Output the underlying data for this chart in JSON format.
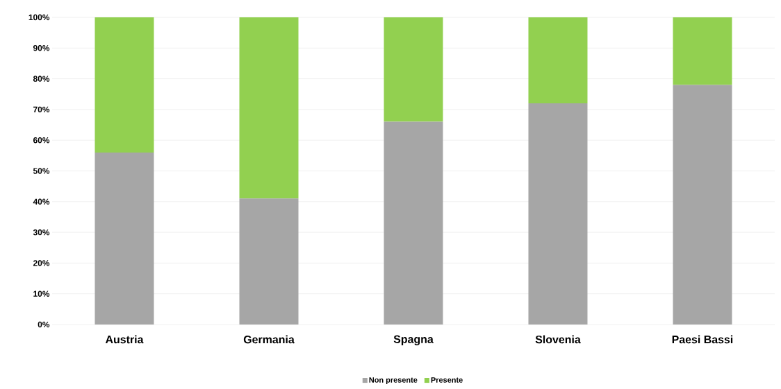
{
  "chart_data": {
    "type": "bar",
    "stacked": true,
    "categories": [
      "Austria",
      "Germania",
      "Spagna",
      "Slovenia",
      "Paesi Bassi"
    ],
    "series": [
      {
        "name": "Non presente",
        "color": "#a6a6a6",
        "values": [
          56,
          41,
          66,
          72,
          78
        ]
      },
      {
        "name": "Presente",
        "color": "#92d050",
        "values": [
          44,
          59,
          34,
          28,
          22
        ]
      }
    ],
    "ylim": [
      0,
      100
    ],
    "yticks": [
      {
        "value": 0,
        "label": "0%"
      },
      {
        "value": 10,
        "label": "10%"
      },
      {
        "value": 20,
        "label": "20%"
      },
      {
        "value": 30,
        "label": "30%"
      },
      {
        "value": 40,
        "label": "40%"
      },
      {
        "value": 50,
        "label": "50%"
      },
      {
        "value": 60,
        "label": "60%"
      },
      {
        "value": 70,
        "label": "70%"
      },
      {
        "value": 80,
        "label": "80%"
      },
      {
        "value": 90,
        "label": "90%"
      },
      {
        "value": 100,
        "label": "100%"
      }
    ],
    "grid": "y",
    "legend": "bottom"
  }
}
